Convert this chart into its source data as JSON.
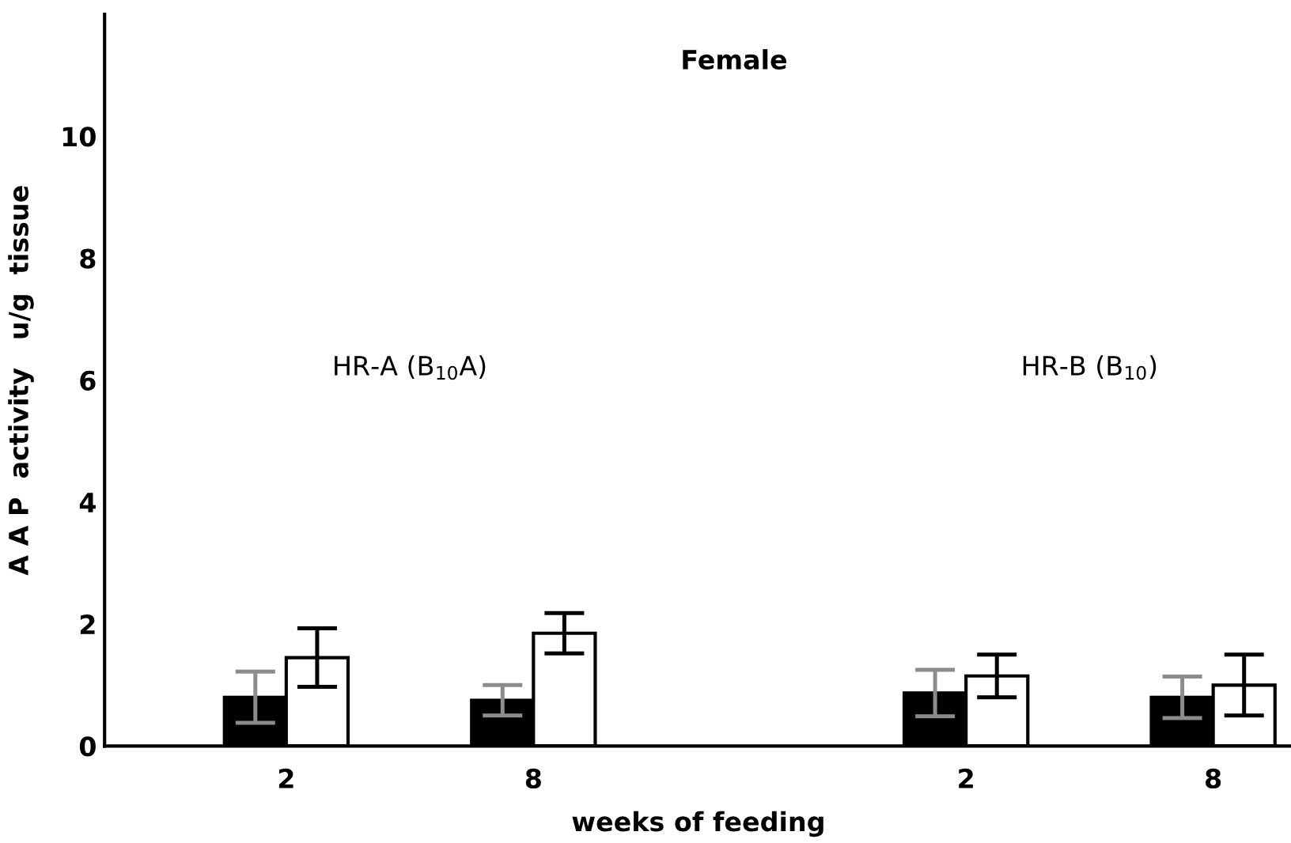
{
  "chart_data": {
    "type": "bar",
    "title": "Female",
    "xlabel": "weeks of feeding",
    "ylabel": "A A P  activity   u/g  tissue",
    "categories": [
      "2",
      "8",
      "2",
      "8"
    ],
    "series": [
      {
        "color": "#000000",
        "values": [
          0.8,
          0.75,
          0.87,
          0.8
        ],
        "errors": [
          0.42,
          0.25,
          0.38,
          0.34
        ]
      },
      {
        "color": "#ffffff",
        "values": [
          1.45,
          1.85,
          1.15,
          1.0
        ],
        "errors": [
          0.48,
          0.33,
          0.35,
          0.5
        ]
      }
    ],
    "annotations": [
      "HR-A (B$_{10}$A)",
      "HR-B (B$_{10}$)"
    ],
    "ylim": [
      0,
      12
    ],
    "yticks": [
      0,
      2,
      4,
      6,
      8,
      10
    ],
    "grid": false,
    "legend": false
  }
}
